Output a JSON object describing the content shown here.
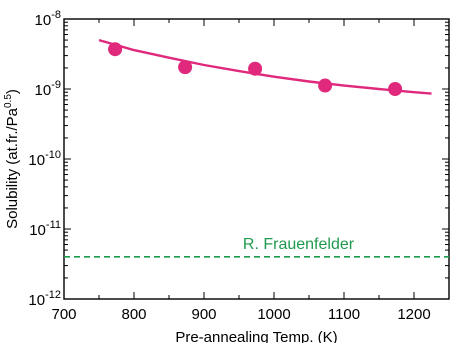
{
  "chart_data": {
    "type": "scatter",
    "xlabel": "Pre-annealing Temp. (K)",
    "ylabel_main": "Solubility (at.fr./Pa",
    "ylabel_sup": "0.5",
    "ylabel_end": ")",
    "xlim": [
      700,
      1250
    ],
    "ylim_log10": [
      -12,
      -8
    ],
    "y_scale": "log",
    "grid": false,
    "x_ticks": [
      700,
      800,
      900,
      1000,
      1100,
      1200
    ],
    "y_tick_exponents": [
      -12,
      -11,
      -10,
      -9,
      -8
    ],
    "y_tick_base": "10",
    "series": [
      {
        "kind": "points",
        "color": "#e0287c",
        "x": [
          773,
          873,
          973,
          1073,
          1173
        ],
        "y": [
          3.7e-09,
          2.05e-09,
          1.95e-09,
          1.12e-09,
          1e-09
        ]
      },
      {
        "kind": "fit-curve",
        "color": "#e0287c",
        "x": [
          750,
          800,
          850,
          900,
          950,
          1000,
          1050,
          1100,
          1150,
          1200,
          1225
        ],
        "y": [
          5e-09,
          3.6e-09,
          2.8e-09,
          2.2e-09,
          1.8e-09,
          1.5e-09,
          1.28e-09,
          1.12e-09,
          1e-09,
          9e-10,
          8.6e-10
        ]
      },
      {
        "kind": "reference-line",
        "name": "R. Frauenfelder",
        "color": "#1f9a4e",
        "x": [
          700,
          1250
        ],
        "y": [
          4e-12,
          4e-12
        ]
      }
    ]
  }
}
